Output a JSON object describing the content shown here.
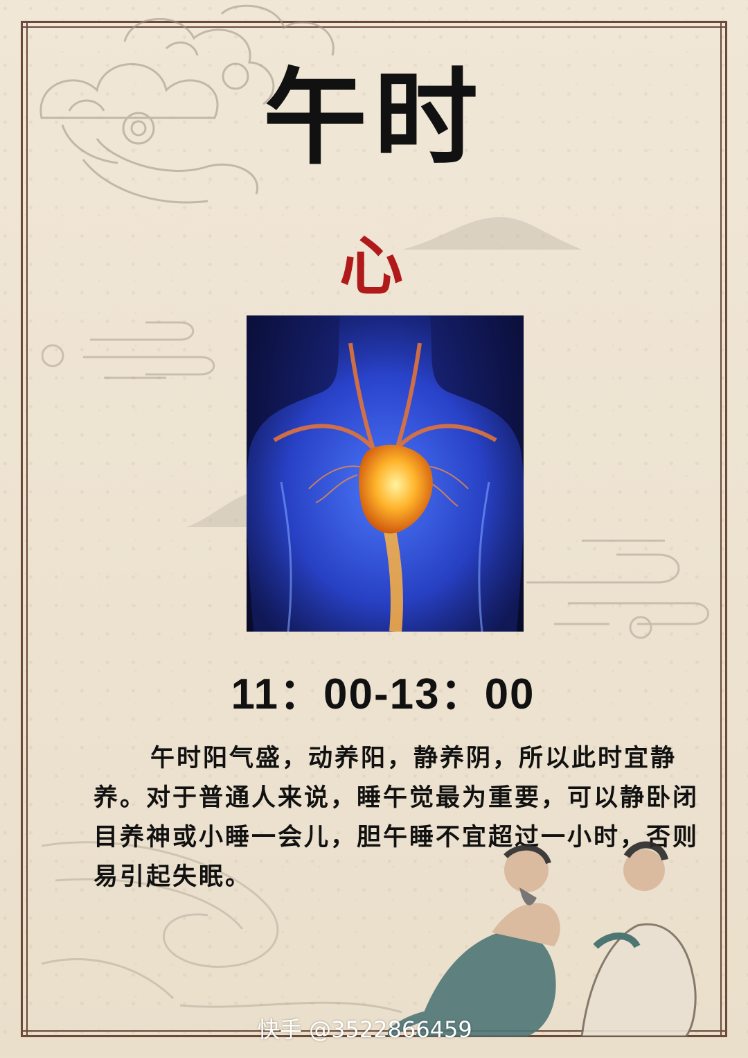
{
  "title": "午时",
  "organ": "心",
  "time_range": "11：00-13：00",
  "description": "午时阳气盛，动养阳，静养阴，所以此时宜静养。对于普通人来说，睡午觉最为重要，可以静卧闭目养神或小睡一会儿，胆午睡不宜超过一小时，否则易引起失眠。",
  "watermark": "快手 @3522866459",
  "colors": {
    "border": "#6b4a3a",
    "organ": "#b01a1a",
    "paper": "#efe4d2"
  }
}
